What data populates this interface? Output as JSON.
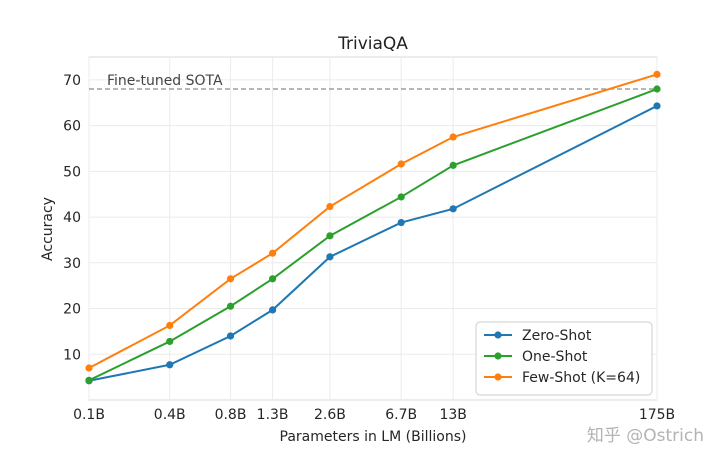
{
  "chart_data": {
    "type": "line",
    "title": "TriviaQA",
    "xlabel": "Parameters in LM (Billions)",
    "ylabel": "Accuracy",
    "categories": [
      "0.1B",
      "0.4B",
      "0.8B",
      "1.3B",
      "2.6B",
      "6.7B",
      "13B",
      "175B"
    ],
    "x": [
      0.125,
      0.35,
      0.76,
      1.3,
      2.7,
      6.7,
      13,
      175
    ],
    "ylim": [
      0,
      75
    ],
    "yticks": [
      10,
      20,
      30,
      40,
      50,
      60,
      70
    ],
    "grid": true,
    "legend_position": "bottom-right",
    "reference_line": {
      "label": "Fine-tuned SOTA",
      "value": 68
    },
    "series": [
      {
        "name": "Zero-Shot",
        "color": "#1f77b4",
        "values": [
          4.2,
          7.7,
          14.0,
          19.7,
          31.3,
          38.8,
          41.8,
          64.3
        ]
      },
      {
        "name": "One-Shot",
        "color": "#2ca02c",
        "values": [
          4.3,
          12.8,
          20.5,
          26.5,
          35.9,
          44.4,
          51.3,
          68.0
        ]
      },
      {
        "name": "Few-Shot (K=64)",
        "color": "#ff7f0e",
        "values": [
          7.0,
          16.3,
          26.5,
          32.1,
          42.3,
          51.6,
          57.5,
          71.2
        ]
      }
    ]
  },
  "watermark": "知乎 @Ostrich"
}
